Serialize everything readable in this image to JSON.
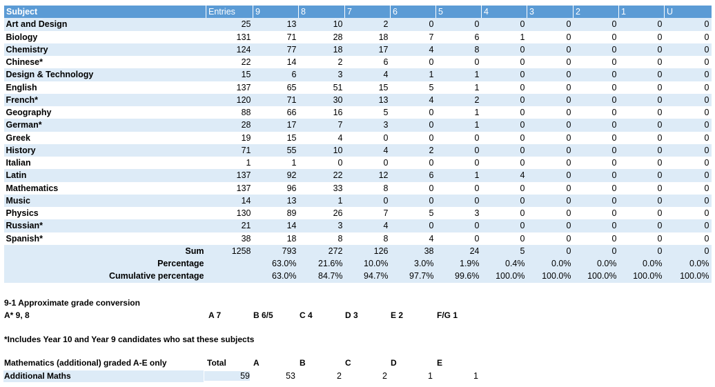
{
  "table": {
    "headers": [
      "Subject",
      "Entries",
      "9",
      "8",
      "7",
      "6",
      "5",
      "4",
      "3",
      "2",
      "1",
      "U"
    ],
    "rows": [
      {
        "subject": "Art and Design",
        "values": [
          "25",
          "13",
          "10",
          "2",
          "0",
          "0",
          "0",
          "0",
          "0",
          "0",
          "0"
        ]
      },
      {
        "subject": "Biology",
        "values": [
          "131",
          "71",
          "28",
          "18",
          "7",
          "6",
          "1",
          "0",
          "0",
          "0",
          "0"
        ]
      },
      {
        "subject": "Chemistry",
        "values": [
          "124",
          "77",
          "18",
          "17",
          "4",
          "8",
          "0",
          "0",
          "0",
          "0",
          "0"
        ]
      },
      {
        "subject": "Chinese*",
        "values": [
          "22",
          "14",
          "2",
          "6",
          "0",
          "0",
          "0",
          "0",
          "0",
          "0",
          "0"
        ]
      },
      {
        "subject": "Design & Technology",
        "values": [
          "15",
          "6",
          "3",
          "4",
          "1",
          "1",
          "0",
          "0",
          "0",
          "0",
          "0"
        ]
      },
      {
        "subject": "English",
        "values": [
          "137",
          "65",
          "51",
          "15",
          "5",
          "1",
          "0",
          "0",
          "0",
          "0",
          "0"
        ]
      },
      {
        "subject": "French*",
        "values": [
          "120",
          "71",
          "30",
          "13",
          "4",
          "2",
          "0",
          "0",
          "0",
          "0",
          "0"
        ]
      },
      {
        "subject": "Geography",
        "values": [
          "88",
          "66",
          "16",
          "5",
          "0",
          "1",
          "0",
          "0",
          "0",
          "0",
          "0"
        ]
      },
      {
        "subject": "German*",
        "values": [
          "28",
          "17",
          "7",
          "3",
          "0",
          "1",
          "0",
          "0",
          "0",
          "0",
          "0"
        ]
      },
      {
        "subject": "Greek",
        "values": [
          "19",
          "15",
          "4",
          "0",
          "0",
          "0",
          "0",
          "0",
          "0",
          "0",
          "0"
        ]
      },
      {
        "subject": "History",
        "values": [
          "71",
          "55",
          "10",
          "4",
          "2",
          "0",
          "0",
          "0",
          "0",
          "0",
          "0"
        ]
      },
      {
        "subject": "Italian",
        "values": [
          "1",
          "1",
          "0",
          "0",
          "0",
          "0",
          "0",
          "0",
          "0",
          "0",
          "0"
        ]
      },
      {
        "subject": "Latin",
        "values": [
          "137",
          "92",
          "22",
          "12",
          "6",
          "1",
          "4",
          "0",
          "0",
          "0",
          "0"
        ]
      },
      {
        "subject": "Mathematics",
        "values": [
          "137",
          "96",
          "33",
          "8",
          "0",
          "0",
          "0",
          "0",
          "0",
          "0",
          "0"
        ]
      },
      {
        "subject": "Music",
        "values": [
          "14",
          "13",
          "1",
          "0",
          "0",
          "0",
          "0",
          "0",
          "0",
          "0",
          "0"
        ]
      },
      {
        "subject": "Physics",
        "values": [
          "130",
          "89",
          "26",
          "7",
          "5",
          "3",
          "0",
          "0",
          "0",
          "0",
          "0"
        ]
      },
      {
        "subject": "Russian*",
        "values": [
          "21",
          "14",
          "3",
          "4",
          "0",
          "0",
          "0",
          "0",
          "0",
          "0",
          "0"
        ]
      },
      {
        "subject": "Spanish*",
        "values": [
          "38",
          "18",
          "8",
          "8",
          "4",
          "0",
          "0",
          "0",
          "0",
          "0",
          "0"
        ]
      }
    ],
    "sum": {
      "label": "Sum",
      "values": [
        "1258",
        "793",
        "272",
        "126",
        "38",
        "24",
        "5",
        "0",
        "0",
        "0",
        "0"
      ]
    },
    "percentage": {
      "label": "Percentage",
      "values": [
        "",
        "63.0%",
        "21.6%",
        "10.0%",
        "3.0%",
        "1.9%",
        "0.4%",
        "0.0%",
        "0.0%",
        "0.0%",
        "0.0%"
      ]
    },
    "cumulative": {
      "label": "Cumulative percentage",
      "values": [
        "",
        "63.0%",
        "84.7%",
        "94.7%",
        "97.7%",
        "99.6%",
        "100.0%",
        "100.0%",
        "100.0%",
        "100.0%",
        "100.0%"
      ]
    }
  },
  "conversion": {
    "title": "9-1 Approximate grade conversion",
    "items": [
      "A* 9, 8",
      "A 7",
      "B 6/5",
      "C 4",
      "D 3",
      "E 2",
      "F/G 1"
    ]
  },
  "footnote": "*Includes Year 10 and Year 9 candidates who sat these subjects",
  "additional_maths": {
    "title": "Mathematics (additional) graded A-E only",
    "headers": [
      "Total",
      "A",
      "B",
      "C",
      "D",
      "E"
    ],
    "row_label": "Additional Maths",
    "values": [
      "59",
      "53",
      "2",
      "2",
      "1",
      "1"
    ]
  }
}
